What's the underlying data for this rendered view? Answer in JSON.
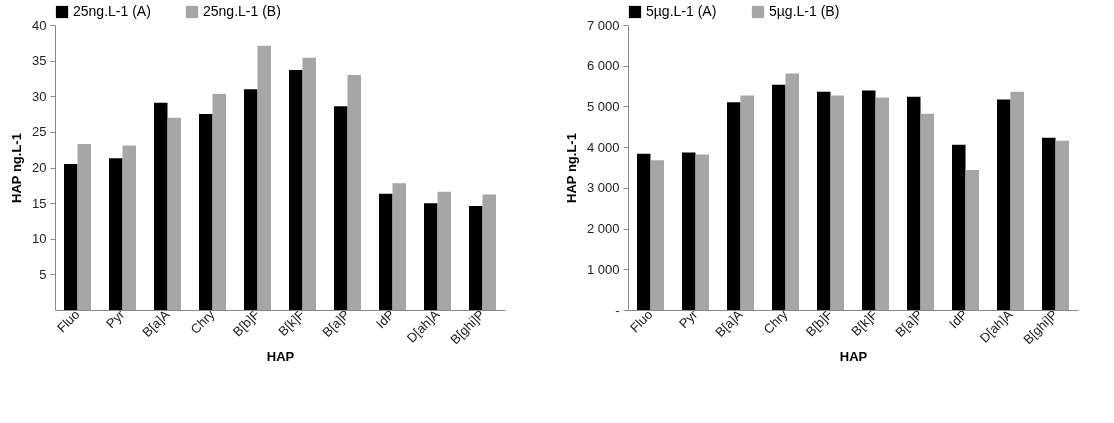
{
  "chart_data": [
    {
      "type": "bar",
      "xlabel": "HAP",
      "ylabel": "HAP ng.L-1",
      "categories": [
        "Fluo",
        "Pyr",
        "B[a]A",
        "Chry",
        "B[b]F",
        "B[k]F",
        "B[a]P",
        "IdP",
        "D[ah]A",
        "B[ghi]P"
      ],
      "series": [
        {
          "name": "25ng.L-1  (A)",
          "color": "#000000",
          "values": [
            20.5,
            21.3,
            29.1,
            27.5,
            31.0,
            33.7,
            28.6,
            16.3,
            15.0,
            14.6
          ]
        },
        {
          "name": "25ng.L-1  (B)",
          "color": "#a6a6a6",
          "values": [
            23.3,
            23.1,
            27.0,
            30.3,
            37.1,
            35.4,
            33.0,
            17.8,
            16.6,
            16.2
          ]
        }
      ],
      "ylim": [
        0,
        40
      ],
      "yticks": [
        5,
        10,
        15,
        20,
        25,
        30,
        35,
        40
      ],
      "grid": false,
      "legend": "top"
    },
    {
      "type": "bar",
      "xlabel": "HAP",
      "ylabel": "HAP ng.L-1",
      "categories": [
        "Fluo",
        "Pyr",
        "B[a]A",
        "Chry",
        "B[b]F",
        "B[k]F",
        "B[a]P",
        "IdP",
        "D[ah]A",
        "B[ghi]P"
      ],
      "series": [
        {
          "name": "5µg.L-1  (A)",
          "color": "#000000",
          "values": [
            3840,
            3870,
            5100,
            5530,
            5360,
            5390,
            5240,
            4060,
            5170,
            4230
          ]
        },
        {
          "name": "5µg.L-1  (B)",
          "color": "#a6a6a6",
          "values": [
            3680,
            3820,
            5270,
            5810,
            5270,
            5220,
            4820,
            3440,
            5360,
            4160
          ]
        }
      ],
      "ylim": [
        0,
        7000
      ],
      "yticks": [
        {
          "value": 0,
          "label": "-"
        },
        {
          "value": 1000,
          "label": "1 000"
        },
        {
          "value": 2000,
          "label": "2 000"
        },
        {
          "value": 3000,
          "label": "3 000"
        },
        {
          "value": 4000,
          "label": "4 000"
        },
        {
          "value": 5000,
          "label": "5 000"
        },
        {
          "value": 6000,
          "label": "6 000"
        },
        {
          "value": 7000,
          "label": "7 000"
        }
      ],
      "grid": false,
      "legend": "top"
    }
  ]
}
